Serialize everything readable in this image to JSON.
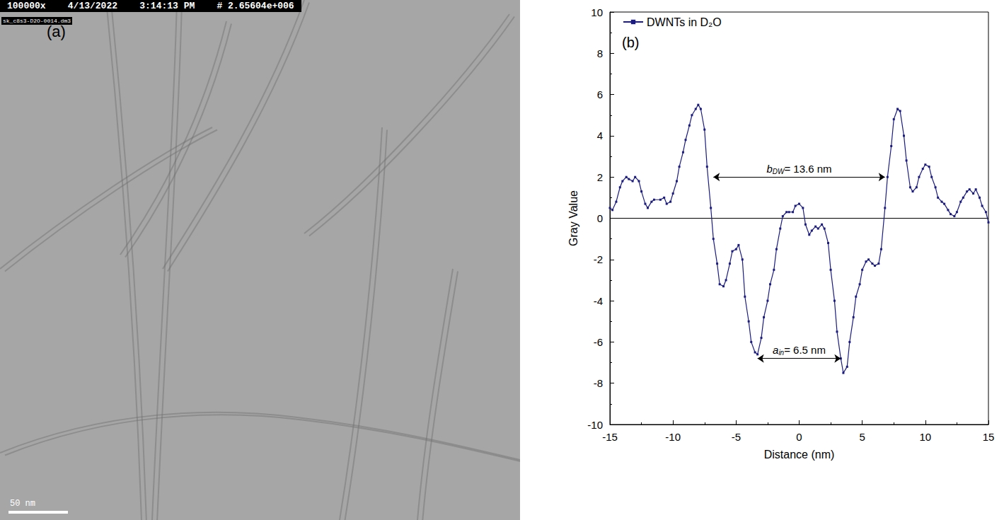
{
  "micrograph": {
    "header": [
      "100000x",
      "4/13/2022",
      "3:14:13 PM",
      "# 2.65604e+006"
    ],
    "filename": "sk_c8s3-D2O-0014.dm3",
    "label": "(a)",
    "scale_bar": "50 nm"
  },
  "chart_data": {
    "type": "line",
    "panel_label": "(b)",
    "x_label": "Distance (nm)",
    "y_label": "Gray Value",
    "series": [
      {
        "name": "DWNTs in D₂O",
        "color": "#1c1c80",
        "marker": "square",
        "line_style": "solid",
        "x": [
          -15,
          -14.8,
          -14.5,
          -14.2,
          -14,
          -13.7,
          -13.5,
          -13.2,
          -13,
          -12.7,
          -12.5,
          -12.2,
          -12,
          -11.7,
          -11.5,
          -11,
          -10.7,
          -10.5,
          -10.2,
          -10,
          -9.7,
          -9.5,
          -9.2,
          -9,
          -8.7,
          -8.5,
          -8.2,
          -8,
          -7.8,
          -7.5,
          -7.3,
          -7,
          -6.8,
          -6.5,
          -6.3,
          -6,
          -5.8,
          -5.5,
          -5.3,
          -5,
          -4.8,
          -4.5,
          -4.3,
          -4,
          -3.8,
          -3.5,
          -3.3,
          -3,
          -2.8,
          -2.5,
          -2.3,
          -2,
          -1.8,
          -1.5,
          -1.3,
          -1,
          -0.8,
          -0.5,
          -0.3,
          0,
          0.3,
          0.5,
          0.8,
          1,
          1.3,
          1.5,
          1.8,
          2,
          2.3,
          2.5,
          2.8,
          3,
          3.3,
          3.5,
          3.8,
          4,
          4.3,
          4.5,
          4.8,
          5,
          5.3,
          5.5,
          5.8,
          6,
          6.3,
          6.5,
          6.8,
          7,
          7.3,
          7.5,
          7.8,
          8,
          8.3,
          8.5,
          8.8,
          9,
          9.3,
          9.5,
          9.8,
          10,
          10.3,
          10.5,
          10.8,
          11,
          11.3,
          11.5,
          11.8,
          12,
          12.3,
          12.5,
          12.8,
          13,
          13.3,
          13.5,
          13.8,
          14,
          14.3,
          14.5,
          14.8,
          15
        ],
        "values": [
          0.5,
          0.4,
          0.8,
          1.5,
          1.8,
          2.0,
          1.9,
          1.8,
          2.0,
          1.8,
          1.3,
          0.7,
          0.5,
          0.8,
          0.9,
          0.9,
          1.0,
          0.7,
          0.8,
          1.2,
          1.8,
          2.5,
          3.2,
          3.8,
          4.5,
          5.0,
          5.3,
          5.5,
          5.3,
          4.3,
          2.5,
          0.5,
          -1.0,
          -2.2,
          -3.2,
          -3.3,
          -3.0,
          -2.2,
          -1.6,
          -1.5,
          -1.3,
          -2.0,
          -3.8,
          -5.0,
          -6.0,
          -6.5,
          -6.6,
          -5.8,
          -4.8,
          -4.0,
          -3.2,
          -2.5,
          -1.5,
          -0.5,
          0.1,
          0.3,
          0.3,
          0.3,
          0.6,
          0.7,
          0.5,
          -0.3,
          -0.8,
          -0.6,
          -0.4,
          -0.5,
          -0.3,
          -0.5,
          -1.2,
          -2.5,
          -4.0,
          -5.5,
          -6.8,
          -7.5,
          -7.2,
          -6.0,
          -4.8,
          -3.8,
          -3.2,
          -2.5,
          -2.1,
          -2.0,
          -2.2,
          -2.3,
          -2.2,
          -1.5,
          0.5,
          2.0,
          3.5,
          4.8,
          5.3,
          5.2,
          4.0,
          2.8,
          1.5,
          1.3,
          1.5,
          2.0,
          2.4,
          2.6,
          2.5,
          2.0,
          1.5,
          1.0,
          0.8,
          0.7,
          0.4,
          0.2,
          0.1,
          0.3,
          0.8,
          1.0,
          1.3,
          1.4,
          1.2,
          1.4,
          1.0,
          0.6,
          0.3,
          -0.2
        ]
      }
    ],
    "hline": 0,
    "annotations": [
      {
        "symbol": "b",
        "subscript": "DW",
        "text": "= 13.6 nm",
        "x_from": -6.8,
        "x_to": 6.8,
        "y": 2
      },
      {
        "symbol": "a",
        "subscript": "in",
        "text": "= 6.5 nm",
        "x_from": -3.3,
        "x_to": 3.3,
        "y": -6.8
      }
    ],
    "xlim": [
      -15,
      15
    ],
    "xticks": [
      -15,
      -10,
      -5,
      0,
      5,
      10,
      15
    ],
    "ylim": [
      -10,
      10
    ],
    "yticks": [
      -10,
      -8,
      -6,
      -4,
      -2,
      0,
      2,
      4,
      6,
      8,
      10
    ],
    "legend": "upper left",
    "grid": false
  }
}
